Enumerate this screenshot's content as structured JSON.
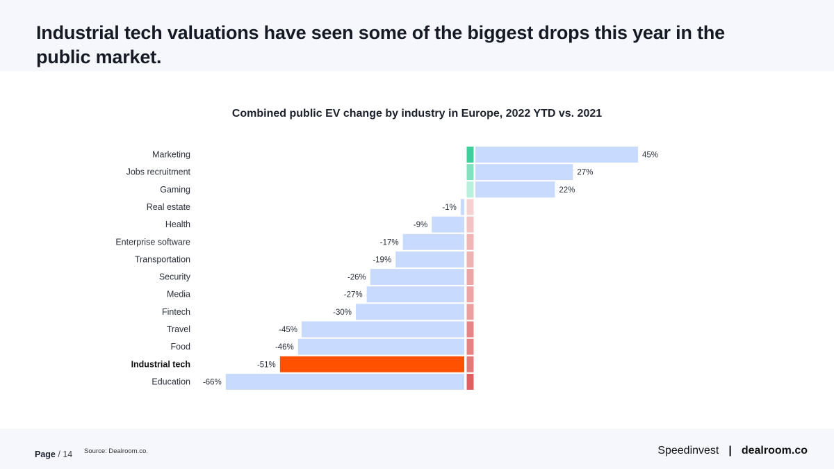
{
  "slide": {
    "title": "Industrial tech valuations have seen some of the biggest drops this year in the public market.",
    "page_label": "Page",
    "page_sep": "/",
    "page_number": "14",
    "source": "Source: Dealroom.co."
  },
  "brands": {
    "speedinvest": "Speedinvest",
    "separator": "|",
    "dealroom": "dealroom.co"
  },
  "colors": {
    "bar_default": "#c9daff",
    "bar_highlight": "#ff5100",
    "strip_positive": [
      "#3ecf9c",
      "#82e2bf",
      "#b8f0dc"
    ],
    "strip_negative_light": "#f6d3d3",
    "strip_negative_dark": "#de6060"
  },
  "chart_data": {
    "type": "bar",
    "orientation": "horizontal",
    "title": "Combined public EV change by industry in Europe, 2022 YTD vs. 2021",
    "xlabel": "",
    "ylabel": "",
    "unit": "%",
    "highlight": "Industrial tech",
    "categories": [
      "Marketing",
      "Jobs recruitment",
      "Gaming",
      "Real estate",
      "Health",
      "Enterprise software",
      "Transportation",
      "Security",
      "Media",
      "Fintech",
      "Travel",
      "Food",
      "Industrial tech",
      "Education"
    ],
    "values": [
      45,
      27,
      22,
      -1,
      -9,
      -17,
      -19,
      -26,
      -27,
      -30,
      -45,
      -46,
      -51,
      -66
    ],
    "labels": [
      "45%",
      "27%",
      "22%",
      "-1%",
      "-9%",
      "-17%",
      "-19%",
      "-26%",
      "-27%",
      "-30%",
      "-45%",
      "-46%",
      "-51%",
      "-66%"
    ]
  }
}
